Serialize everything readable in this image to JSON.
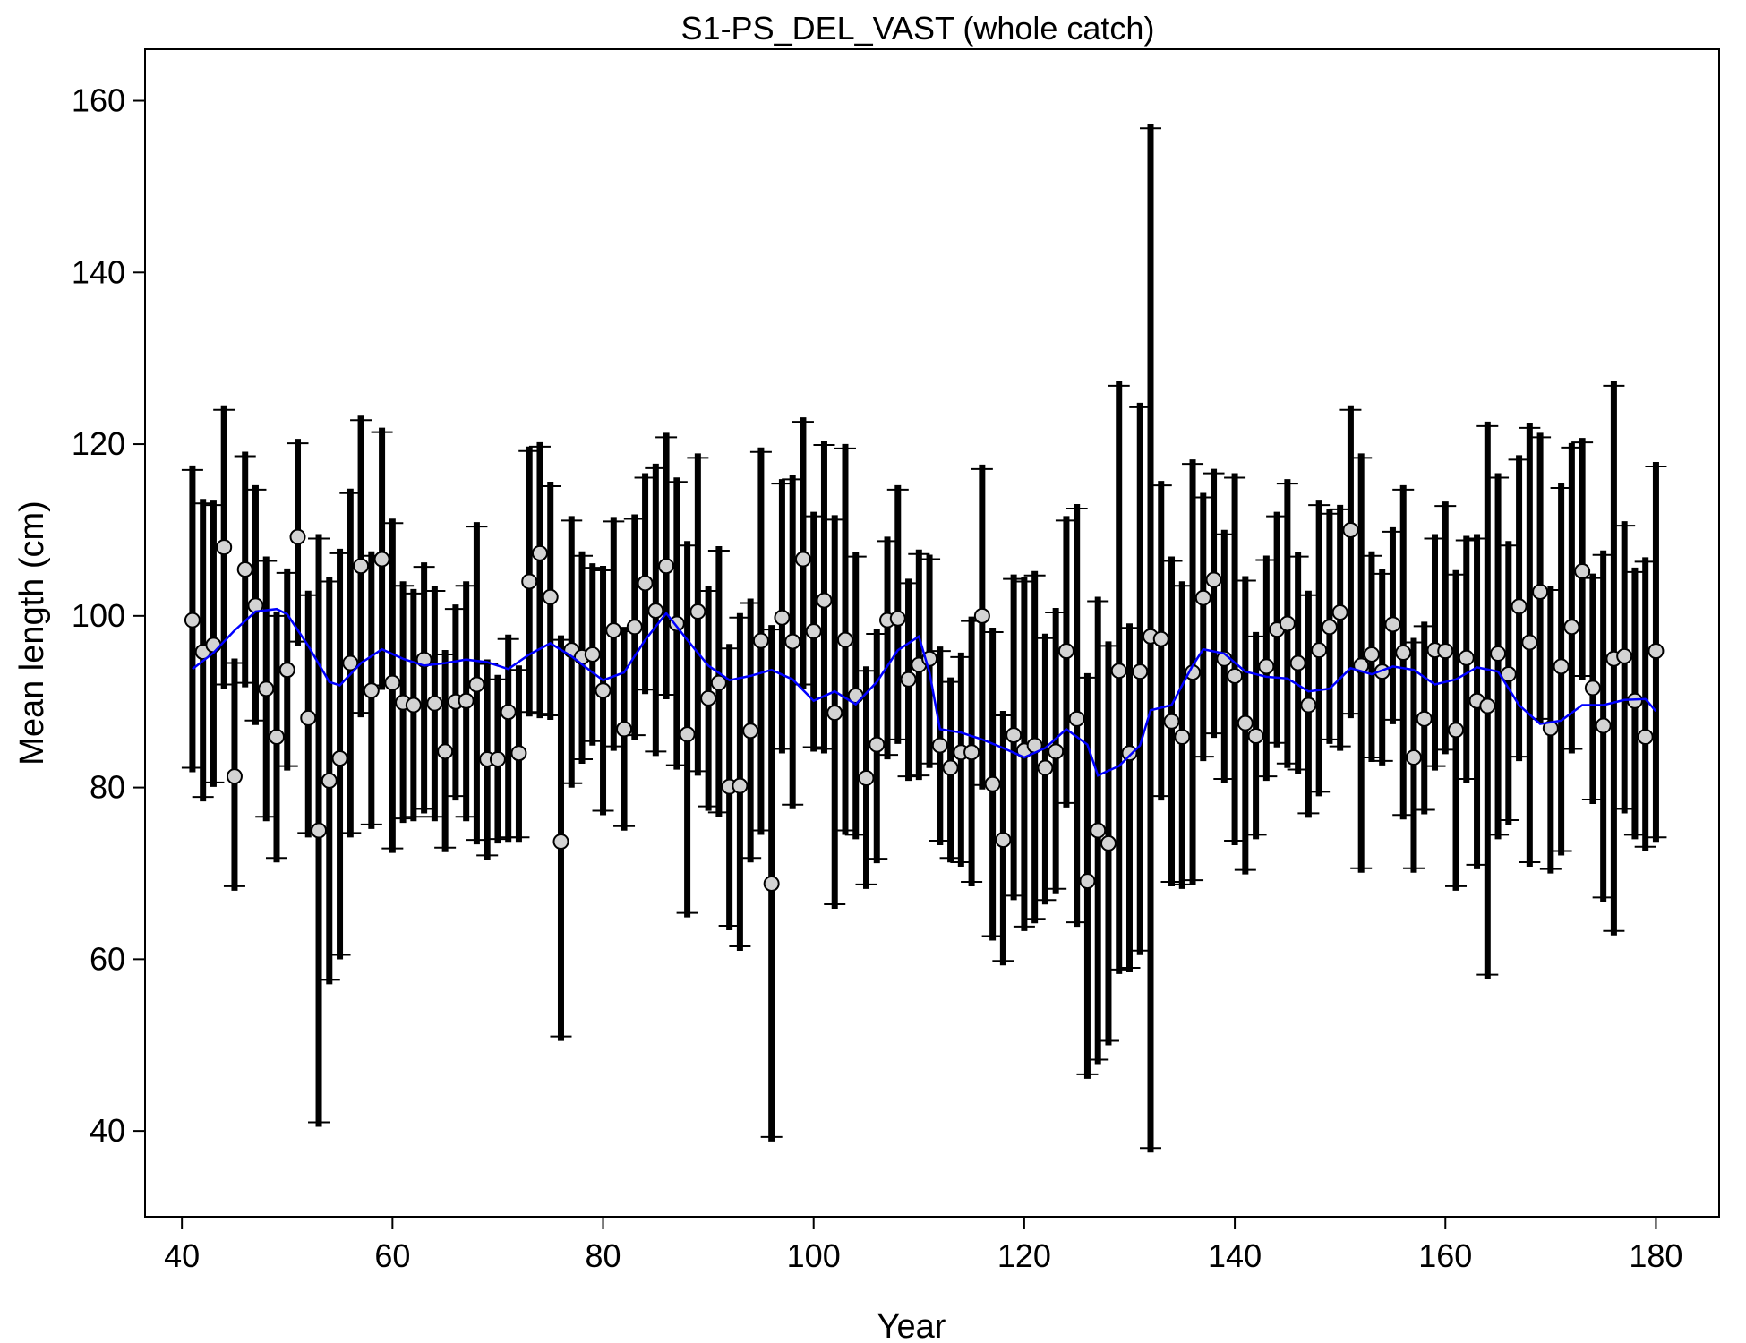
{
  "chart_data": {
    "type": "scatter",
    "title": "S1-PS_DEL_VAST (whole catch)",
    "xlabel": "Year",
    "ylabel": "Mean length (cm)",
    "xlim": [
      36.5,
      186
    ],
    "ylim": [
      30,
      166
    ],
    "xticks": [
      40,
      60,
      80,
      100,
      120,
      140,
      160,
      180
    ],
    "yticks": [
      40,
      60,
      80,
      100,
      120,
      140,
      160
    ],
    "grid": false,
    "colors": {
      "points": "#d3d3d3",
      "intervals": "#000000",
      "smoother": "#0000ff"
    },
    "series": [
      {
        "name": "observed",
        "x": [
          41,
          42,
          43,
          44,
          45,
          46,
          47,
          48,
          49,
          50,
          51,
          52,
          53,
          54,
          55,
          56,
          57,
          58,
          59,
          60,
          61,
          62,
          63,
          64,
          65,
          66,
          67,
          68,
          69,
          70,
          71,
          72,
          73,
          74,
          75,
          76,
          77,
          78,
          79,
          80,
          81,
          82,
          83,
          84,
          85,
          86,
          87,
          88,
          89,
          90,
          91,
          92,
          93,
          94,
          95,
          96,
          97,
          98,
          99,
          100,
          101,
          102,
          103,
          104,
          105,
          106,
          107,
          108,
          109,
          110,
          111,
          112,
          113,
          114,
          115,
          116,
          117,
          118,
          119,
          120,
          121,
          122,
          123,
          124,
          125,
          126,
          127,
          128,
          129,
          130,
          131,
          132,
          133,
          134,
          135,
          136,
          137,
          138,
          139,
          140,
          141,
          142,
          143,
          144,
          145,
          146,
          147,
          148,
          149,
          150,
          151,
          152,
          153,
          154,
          155,
          156,
          157,
          158,
          159,
          160,
          161,
          162,
          163,
          164,
          165,
          166,
          167,
          168,
          169,
          170,
          171,
          172,
          173,
          174,
          175,
          176,
          177,
          178,
          179,
          180
        ],
        "y": [
          99.5,
          95.8,
          96.6,
          108,
          81.3,
          105.4,
          101.2,
          91.5,
          85.9,
          93.7,
          109.2,
          88.1,
          75,
          80.8,
          83.4,
          94.5,
          105.8,
          91.3,
          106.6,
          92.2,
          89.9,
          89.6,
          94.9,
          89.8,
          84.2,
          90,
          90.1,
          92,
          83.3,
          83.3,
          88.8,
          84,
          104,
          107.3,
          102.2,
          73.7,
          96,
          95.2,
          95.5,
          91.3,
          98.3,
          86.8,
          98.7,
          103.8,
          100.6,
          105.8,
          99.1,
          86.2,
          100.5,
          90.4,
          92.2,
          80.1,
          80.2,
          86.6,
          97.1,
          68.8,
          99.8,
          97,
          106.6,
          98.2,
          101.8,
          88.7,
          97.2,
          90.7,
          81.1,
          85,
          99.5,
          99.7,
          92.6,
          94.3,
          95,
          84.9,
          82.3,
          84.1,
          84.1,
          100,
          80.4,
          73.9,
          86.1,
          84.3,
          84.9,
          82.3,
          84.2,
          95.9,
          88,
          69.1,
          75,
          73.5,
          93.6,
          84,
          93.5,
          97.6,
          97.3,
          87.7,
          85.9,
          93.4,
          102.1,
          104.2,
          95,
          93,
          87.5,
          86,
          94.1,
          98.4,
          99.1,
          94.5,
          89.6,
          96,
          98.7,
          100.4,
          110,
          94.2,
          95.5,
          93.5,
          99,
          95.7,
          83.5,
          88,
          96,
          95.9,
          86.7,
          95.1,
          90.1,
          89.5,
          95.6,
          93.2,
          101.1,
          96.9,
          102.8,
          86.9,
          94.1,
          98.7,
          105.2,
          91.6,
          87.2,
          95,
          95.3,
          90.1,
          85.9,
          95.9
        ],
        "ci_lower": [
          82.3,
          78.9,
          80.6,
          92,
          68.5,
          92.2,
          87.8,
          76.6,
          71.8,
          82.5,
          97,
          74.7,
          41,
          57.6,
          60.5,
          74.7,
          88.7,
          75.7,
          91.9,
          72.9,
          76.4,
          76.6,
          77.5,
          76.6,
          73,
          79,
          76.6,
          73.9,
          72.1,
          74,
          74.2,
          74.2,
          88.8,
          88.6,
          88.4,
          51,
          80.5,
          83.3,
          85.4,
          77.3,
          84.8,
          75.5,
          86.1,
          91.4,
          84.2,
          90.8,
          82.6,
          65.4,
          81.9,
          77.8,
          77.1,
          63.9,
          61.5,
          71.8,
          75,
          39.3,
          84.5,
          78,
          92,
          84.7,
          84.5,
          66.4,
          75,
          74.5,
          68.7,
          71.7,
          83.8,
          85.6,
          81.3,
          81.4,
          82.8,
          73.8,
          71.8,
          71.3,
          69,
          80.3,
          62.7,
          59.8,
          67.4,
          63.8,
          64.7,
          66.9,
          68.2,
          78.2,
          64.3,
          46.6,
          48.3,
          50.5,
          58.8,
          59,
          61,
          38,
          79,
          69,
          68.7,
          69.2,
          83.6,
          86.3,
          81,
          73.8,
          70.4,
          74.5,
          81.3,
          85.2,
          82.8,
          82.1,
          77,
          79.5,
          85.6,
          84.8,
          88.6,
          70.6,
          83.5,
          83.1,
          87.9,
          76.8,
          70.6,
          77.4,
          82.5,
          84.4,
          68.5,
          81,
          71,
          58.2,
          74.5,
          76.2,
          83.6,
          71.3,
          88,
          70.5,
          72.6,
          84.5,
          93,
          78.6,
          67.2,
          63.3,
          77.5,
          74.5,
          73.1,
          74.2
        ],
        "ci_upper": [
          117,
          113.1,
          112.9,
          124,
          94.5,
          118.6,
          114.7,
          106.4,
          100,
          105,
          120.1,
          102.4,
          109,
          104,
          107.3,
          114.3,
          122.8,
          107,
          121.4,
          110.8,
          103.5,
          102.6,
          105.7,
          102.9,
          95.5,
          100.8,
          103.5,
          110.4,
          94.4,
          92.6,
          97.3,
          93.7,
          119.2,
          119.7,
          115.1,
          97.2,
          111.1,
          107,
          105.6,
          105.3,
          111,
          98.2,
          111.3,
          116.1,
          117.2,
          120.8,
          115.6,
          108.2,
          118.4,
          102.9,
          107.6,
          96.2,
          99.8,
          101.5,
          119.1,
          98.4,
          115.4,
          115.9,
          122.6,
          111.6,
          119.9,
          111.2,
          119.5,
          106.9,
          93.6,
          97.9,
          108.7,
          114.7,
          103.8,
          107.2,
          106.6,
          95.9,
          92.3,
          95.2,
          99.4,
          117.1,
          98.1,
          88.4,
          104.3,
          104,
          104.7,
          97.4,
          100.4,
          111.1,
          112.5,
          92.8,
          101.7,
          96.5,
          126.8,
          98.6,
          124.3,
          156.8,
          115.2,
          106.4,
          103.5,
          117.7,
          113.8,
          116.6,
          109.5,
          116.1,
          104.1,
          97.6,
          106.5,
          111.6,
          115.4,
          106.9,
          102.4,
          112.9,
          111.9,
          112.4,
          124,
          118.4,
          107,
          104.9,
          109.8,
          114.7,
          96.9,
          98.8,
          109,
          112.8,
          104.8,
          108.8,
          109,
          122.1,
          116.1,
          108.2,
          118.2,
          121.9,
          120.8,
          103,
          114.9,
          119.6,
          120.2,
          104.4,
          107.1,
          126.8,
          110.5,
          105.1,
          106.3,
          117.4
        ]
      },
      {
        "name": "smoother",
        "x": [
          41,
          43,
          45,
          47,
          49,
          50,
          52,
          54,
          55,
          57,
          59,
          61,
          63,
          65,
          67,
          69,
          71,
          73,
          75,
          77,
          79,
          80,
          82,
          84,
          86,
          88,
          90,
          92,
          94,
          96,
          98,
          100,
          102,
          104,
          106,
          108,
          110,
          111,
          112,
          114,
          116,
          118,
          120,
          122,
          124,
          126,
          127,
          129,
          131,
          132,
          134,
          136,
          137,
          139,
          141,
          143,
          145,
          147,
          149,
          151,
          153,
          155,
          157,
          159,
          161,
          163,
          165,
          167,
          169,
          171,
          173,
          175,
          177,
          179,
          180
        ],
        "y": [
          93.8,
          95.7,
          98.3,
          100.5,
          100.8,
          100.2,
          96.5,
          92.3,
          91.9,
          94.5,
          96.1,
          95,
          94.2,
          94.5,
          94.9,
          94.6,
          93.8,
          95.5,
          96.8,
          95.3,
          93.4,
          92.5,
          93.4,
          97.2,
          100.3,
          97.2,
          94.2,
          92.5,
          93,
          93.7,
          92.6,
          90.1,
          91.2,
          89.7,
          92.3,
          96,
          97.6,
          93.4,
          86.8,
          86.4,
          85.6,
          84.6,
          83.5,
          84.6,
          86.8,
          85,
          81.4,
          82.5,
          84.9,
          89,
          89.6,
          94.2,
          96.1,
          95.6,
          93.5,
          92.9,
          92.7,
          91.2,
          91.5,
          93.9,
          93.2,
          94.1,
          93.7,
          92,
          92.6,
          94,
          93.5,
          89.6,
          87.4,
          87.8,
          89.6,
          89.6,
          90.2,
          90.3,
          88.9
        ]
      }
    ]
  }
}
